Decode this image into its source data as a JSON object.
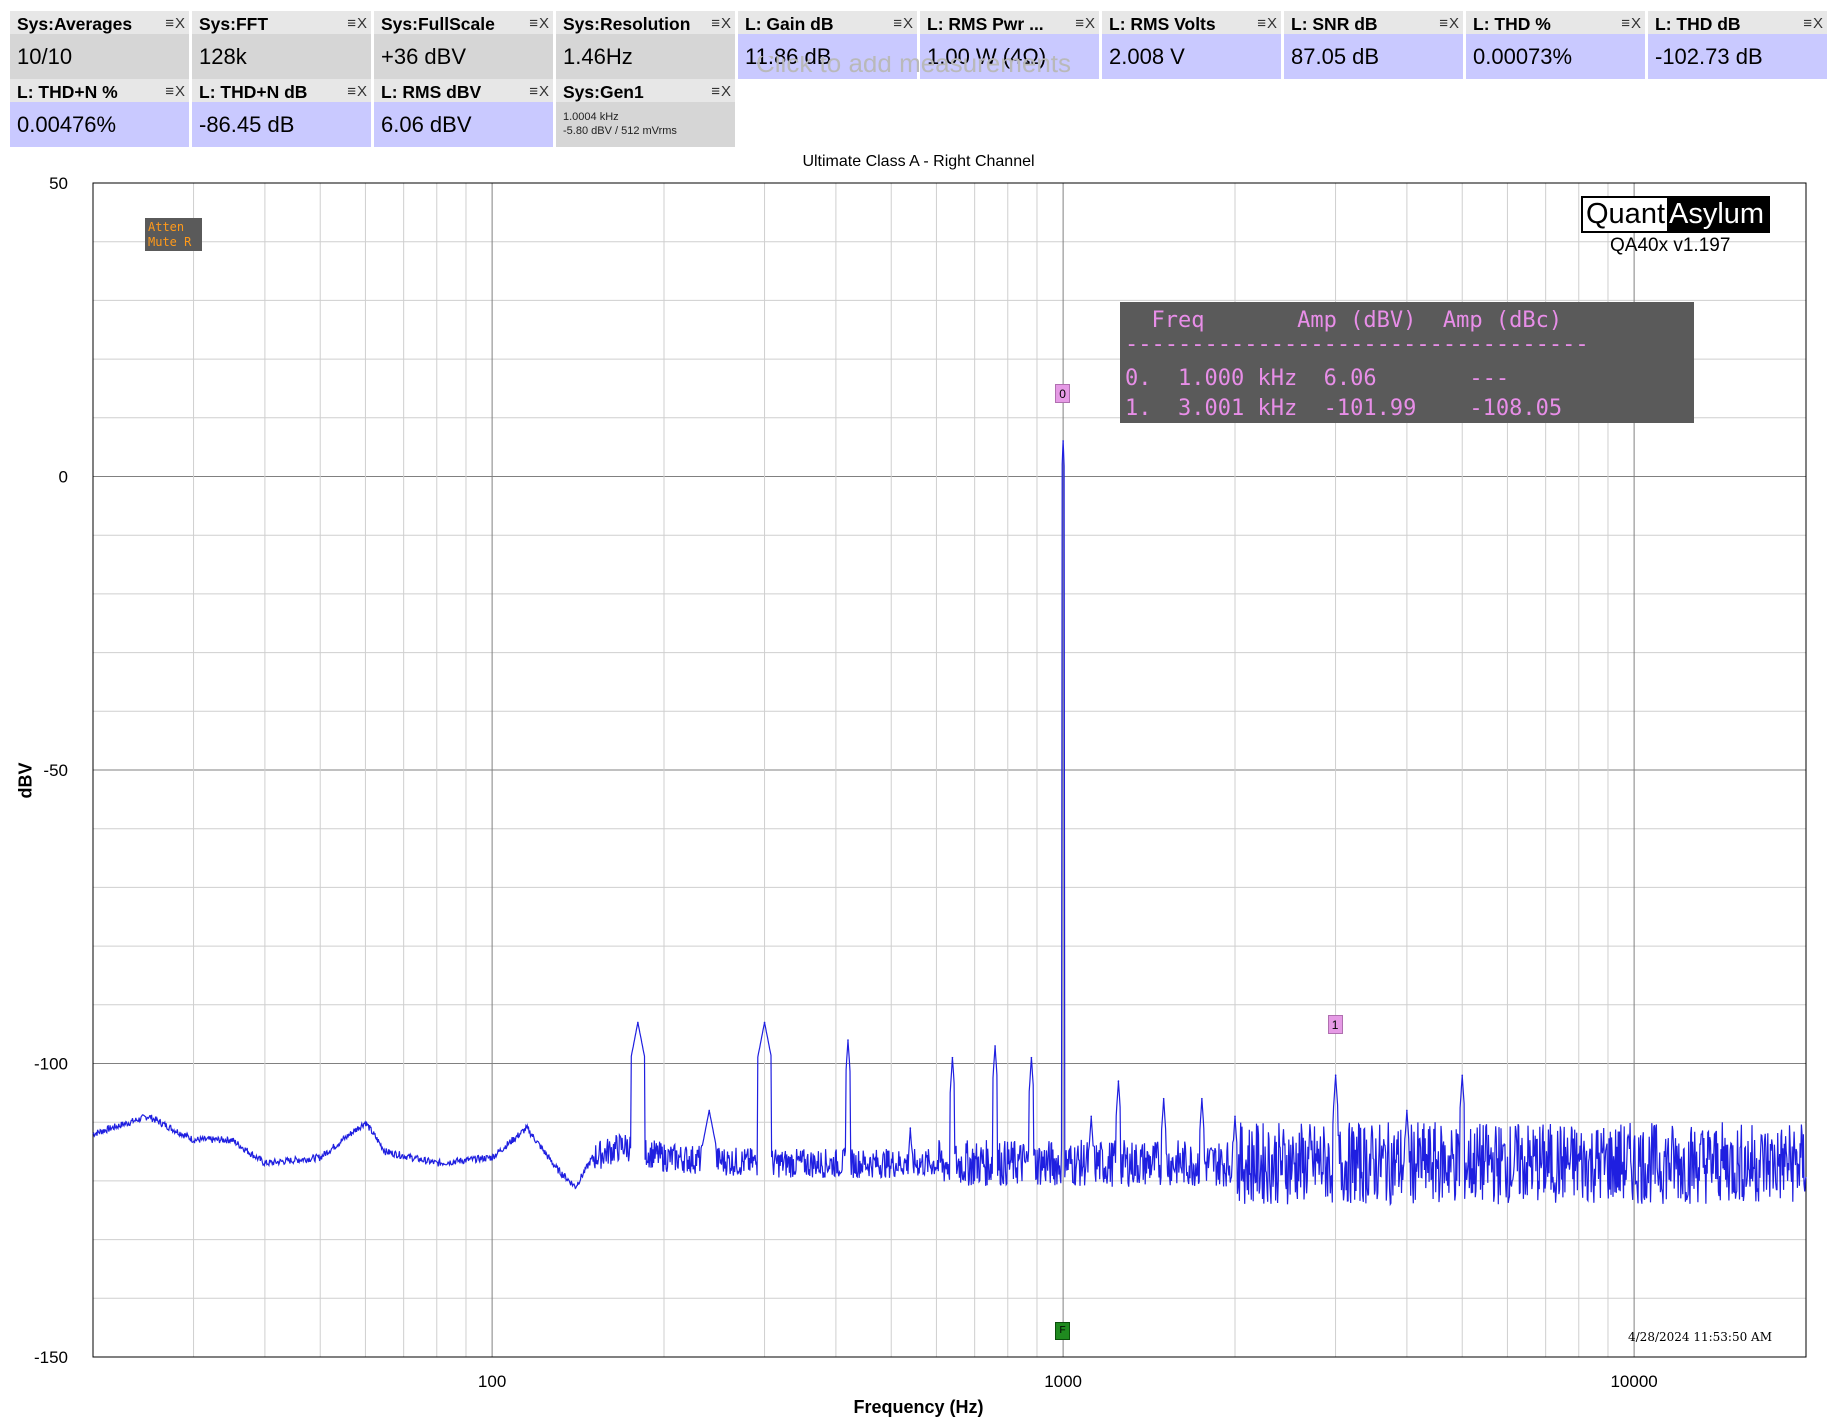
{
  "measurements": [
    {
      "name": "Sys:Averages",
      "value": "10/10",
      "style": "gray"
    },
    {
      "name": "Sys:FFT",
      "value": "128k",
      "style": "gray"
    },
    {
      "name": "Sys:FullScale",
      "value": "+36 dBV",
      "style": "gray"
    },
    {
      "name": "Sys:Resolution",
      "value": "1.46Hz",
      "style": "gray"
    },
    {
      "name": "L: Gain dB",
      "value": "11.86 dB",
      "style": "blue"
    },
    {
      "name": "L: RMS Pwr ...",
      "value": "1.00 W (4Ω)",
      "style": "blue"
    },
    {
      "name": "L: RMS Volts",
      "value": "2.008 V",
      "style": "blue"
    },
    {
      "name": "L: SNR dB",
      "value": "87.05 dB",
      "style": "blue"
    },
    {
      "name": "L: THD %",
      "value": "0.00073%",
      "style": "blue"
    },
    {
      "name": "L: THD dB",
      "value": "-102.73 dB",
      "style": "blue"
    },
    {
      "name": "L: THD+N %",
      "value": "0.00476%",
      "style": "blue"
    },
    {
      "name": "L: THD+N dB",
      "value": "-86.45 dB",
      "style": "blue"
    },
    {
      "name": "L: RMS dBV",
      "value": "6.06 dBV",
      "style": "blue"
    },
    {
      "name": "Sys:Gen1",
      "value_lines": [
        "1.0004 kHz",
        "-5.80 dBV  / 512 mVrms"
      ],
      "style": "gray"
    }
  ],
  "tile_buttons": "≡X",
  "add_measurement_hint": "Click to add measurements",
  "logo": {
    "left": "Quant",
    "right": "Asylum"
  },
  "version": "QA40x v1.197",
  "status_box": [
    "Atten",
    "Mute R"
  ],
  "timestamp": "4/28/2024 11:53:50 AM",
  "harmonic_table": {
    "header": "  Freq       Amp (dBV)  Amp (dBc)",
    "divider": "-----------------------------------",
    "rows": [
      "0.  1.000 kHz  6.06       ---",
      "1.  3.001 kHz  -101.99    -108.05"
    ]
  },
  "markers": [
    {
      "label": "0",
      "freq": 1000,
      "amp": 14
    },
    {
      "label": "1",
      "freq": 3001,
      "amp": -93.5
    }
  ],
  "fundamental_marker": {
    "label": "F",
    "freq": 1000
  },
  "chart_data": {
    "type": "line",
    "title": "Ultimate Class A - Right Channel",
    "xlabel": "Frequency (Hz)",
    "ylabel": "dBV",
    "xscale": "log",
    "xlim": [
      20,
      20000
    ],
    "ylim": [
      -150,
      50
    ],
    "xticks": [
      100,
      1000,
      10000
    ],
    "yticks": [
      50,
      0,
      -50,
      -100,
      -150
    ],
    "grid": true,
    "line_color": "#1f1fe0",
    "series": [
      {
        "noise_floor": [
          [
            20,
            -112
          ],
          [
            25,
            -109
          ],
          [
            30,
            -113
          ],
          [
            35,
            -113
          ],
          [
            40,
            -117
          ],
          [
            50,
            -116
          ],
          [
            60,
            -110
          ],
          [
            65,
            -115
          ],
          [
            80,
            -117
          ],
          [
            100,
            -116
          ],
          [
            115,
            -111
          ],
          [
            130,
            -118
          ],
          [
            140,
            -121
          ],
          [
            150,
            -116
          ],
          [
            170,
            -114
          ],
          [
            200,
            -116
          ],
          [
            300,
            -117
          ],
          [
            500,
            -117
          ],
          [
            1000,
            -117
          ],
          [
            2000,
            -117
          ],
          [
            5000,
            -117
          ],
          [
            10000,
            -117
          ],
          [
            20000,
            -117
          ]
        ],
        "peaks": [
          [
            180,
            -93
          ],
          [
            240,
            -108
          ],
          [
            300,
            -93
          ],
          [
            420,
            -96
          ],
          [
            540,
            -111
          ],
          [
            640,
            -99
          ],
          [
            760,
            -97
          ],
          [
            880,
            -99
          ],
          [
            1000,
            6.06
          ],
          [
            1120,
            -109
          ],
          [
            1250,
            -103
          ],
          [
            1500,
            -106
          ],
          [
            1750,
            -106
          ],
          [
            2000,
            -109
          ],
          [
            3001,
            -101.99
          ],
          [
            4000,
            -108
          ],
          [
            5000,
            -102
          ]
        ]
      }
    ]
  }
}
